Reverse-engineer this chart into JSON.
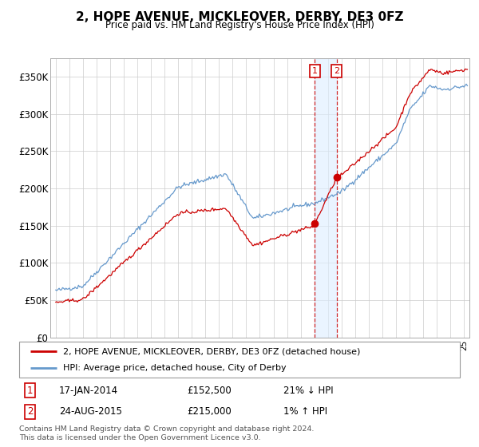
{
  "title": "2, HOPE AVENUE, MICKLEOVER, DERBY, DE3 0FZ",
  "subtitle": "Price paid vs. HM Land Registry's House Price Index (HPI)",
  "ylabel_ticks": [
    "£0",
    "£50K",
    "£100K",
    "£150K",
    "£200K",
    "£250K",
    "£300K",
    "£350K"
  ],
  "ytick_vals": [
    0,
    50000,
    100000,
    150000,
    200000,
    250000,
    300000,
    350000
  ],
  "ylim": [
    0,
    375000
  ],
  "sale1": {
    "date_label": "17-JAN-2014",
    "price": 152500,
    "label": "21% ↓ HPI",
    "num": "1",
    "year": 2014.04
  },
  "sale2": {
    "date_label": "24-AUG-2015",
    "price": 215000,
    "label": "1% ↑ HPI",
    "num": "2",
    "year": 2015.65
  },
  "legend_line1": "2, HOPE AVENUE, MICKLEOVER, DERBY, DE3 0FZ (detached house)",
  "legend_line2": "HPI: Average price, detached house, City of Derby",
  "footer": "Contains HM Land Registry data © Crown copyright and database right 2024.\nThis data is licensed under the Open Government Licence v3.0.",
  "line_color_red": "#cc0000",
  "line_color_blue": "#6699cc",
  "shade_color": "#ddeeff",
  "background_color": "#ffffff",
  "grid_color": "#cccccc"
}
